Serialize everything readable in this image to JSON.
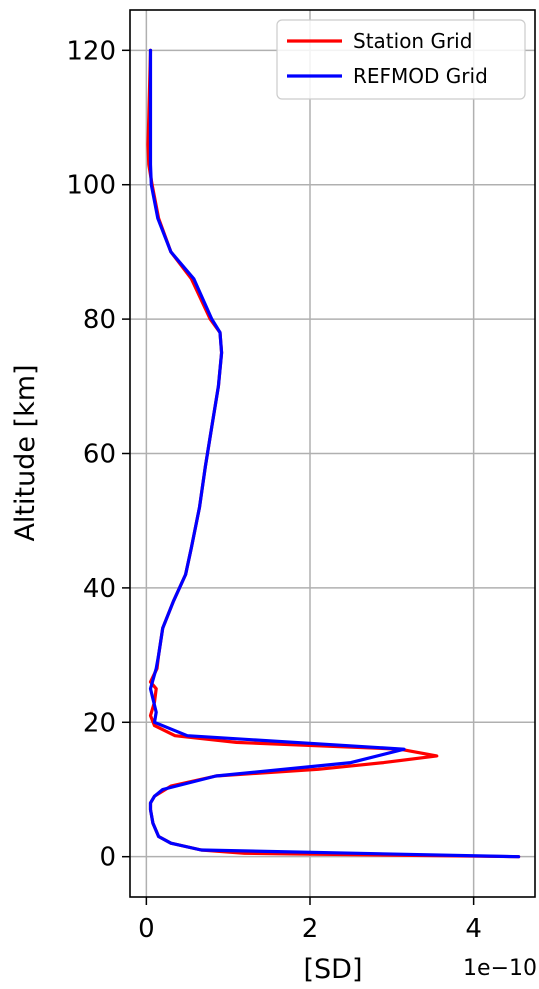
{
  "chart_data": {
    "type": "line",
    "xlabel": "[SD]",
    "ylabel": "Altitude [km]",
    "x_offset_label": "1e−10",
    "x_scale": 1e-10,
    "xlim": [
      -0.2,
      4.75
    ],
    "ylim": [
      -6,
      126
    ],
    "xticks": [
      0,
      2,
      4
    ],
    "xtick_labels": [
      "0",
      "2",
      "4"
    ],
    "yticks": [
      0,
      20,
      40,
      60,
      80,
      100,
      120
    ],
    "ytick_labels": [
      "0",
      "20",
      "40",
      "60",
      "80",
      "100",
      "120"
    ],
    "grid": true,
    "legend_position": "top-right",
    "series": [
      {
        "name": "Station Grid",
        "color": "#ff0000",
        "x": [
          4.55,
          1.2,
          0.67,
          0.3,
          0.15,
          0.08,
          0.05,
          0.05,
          0.1,
          0.3,
          0.85,
          2.1,
          2.9,
          3.55,
          3.1,
          1.1,
          0.35,
          0.1,
          0.05,
          0.1,
          0.12,
          0.05,
          0.13,
          0.15,
          0.2,
          0.33,
          0.48,
          0.55,
          0.65,
          0.72,
          0.8,
          0.88,
          0.92,
          0.9,
          0.78,
          0.55,
          0.3,
          0.15,
          0.07,
          0.03,
          0.02,
          0.03,
          0.05
        ],
        "y": [
          0,
          0.5,
          1,
          2,
          3,
          5,
          7,
          8,
          9,
          10.5,
          12,
          13,
          14,
          15,
          16,
          17,
          18,
          19.5,
          21,
          23,
          25,
          26,
          28,
          30,
          34,
          38,
          42,
          46,
          52,
          58,
          64,
          70,
          75,
          78,
          80,
          86,
          90,
          95,
          100,
          103,
          106,
          110,
          120
        ]
      },
      {
        "name": "REFMOD Grid",
        "color": "#0000ff",
        "x": [
          4.55,
          0.67,
          0.3,
          0.15,
          0.08,
          0.05,
          0.05,
          0.1,
          0.2,
          0.85,
          2.5,
          3.15,
          0.5,
          0.1,
          0.12,
          0.05,
          0.12,
          0.15,
          0.2,
          0.33,
          0.48,
          0.55,
          0.65,
          0.72,
          0.8,
          0.88,
          0.92,
          0.9,
          0.8,
          0.58,
          0.3,
          0.14,
          0.06,
          0.05,
          0.05,
          0.05
        ],
        "y": [
          0,
          1,
          2,
          3,
          5,
          7,
          8,
          9,
          10,
          12,
          14,
          16,
          18,
          20,
          21.5,
          25,
          28,
          30,
          34,
          38,
          42,
          46,
          52,
          58,
          64,
          70,
          75,
          78,
          80,
          86,
          90,
          95,
          100,
          103,
          110,
          120
        ]
      }
    ]
  }
}
